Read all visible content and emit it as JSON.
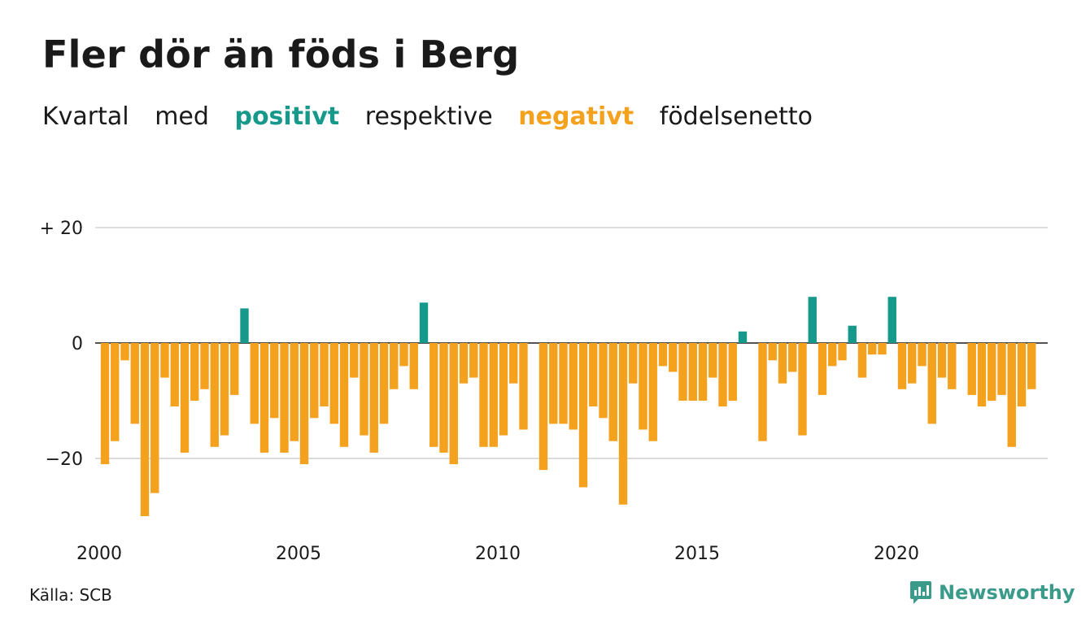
{
  "title": "Fler dör än föds i Berg",
  "subtitle": {
    "part1": "Kvartal",
    "part2": "med",
    "positive_word": "positivt",
    "part3": "respektive",
    "negative_word": "negativt",
    "part4": "födelsenetto"
  },
  "colors": {
    "positive": "#16998a",
    "negative": "#f4a11e",
    "grid": "#dcdcdc",
    "zero_line": "#1a1a1a",
    "brand": "#3a9b8a"
  },
  "source": "Källa: SCB",
  "brand": {
    "name": "Newsworthy",
    "icon": "newsworthy-logo-icon"
  },
  "chart_data": {
    "type": "bar",
    "title": "Fler dör än föds i Berg",
    "xlabel": "",
    "ylabel": "",
    "ylim": [
      -30,
      20
    ],
    "grid": true,
    "y_ticks": [
      {
        "value": 20,
        "label": "+ 20"
      },
      {
        "value": 0,
        "label": "0"
      },
      {
        "value": -20,
        "label": "−20"
      }
    ],
    "x_ticks": [
      {
        "value": 2000,
        "label": "2000"
      },
      {
        "value": 2005,
        "label": "2005"
      },
      {
        "value": 2010,
        "label": "2010"
      },
      {
        "value": 2015,
        "label": "2015"
      },
      {
        "value": 2020,
        "label": "2020"
      }
    ],
    "x_start": 2000,
    "periods_per_year": 4,
    "values": [
      -21,
      -17,
      -3,
      -14,
      -30,
      -26,
      -6,
      -11,
      -19,
      -10,
      -8,
      -18,
      -16,
      -9,
      6,
      -14,
      -19,
      -13,
      -19,
      -17,
      -21,
      -13,
      -11,
      -14,
      -18,
      -6,
      -16,
      -19,
      -14,
      -8,
      -4,
      -8,
      7,
      -18,
      -19,
      -21,
      -7,
      -6,
      -18,
      -18,
      -16,
      -7,
      -15,
      0,
      -22,
      -14,
      -14,
      -15,
      -25,
      -11,
      -13,
      -17,
      -28,
      -7,
      -15,
      -17,
      -4,
      -5,
      -10,
      -10,
      -10,
      -6,
      -11,
      -10,
      2,
      0,
      -17,
      -3,
      -7,
      -5,
      -16,
      8,
      -9,
      -4,
      -3,
      3,
      -6,
      -2,
      -2,
      8,
      -8,
      -7,
      -4,
      -14,
      -6,
      -8,
      0,
      -9,
      -11,
      -10,
      -9,
      -18,
      -11,
      -8
    ]
  }
}
